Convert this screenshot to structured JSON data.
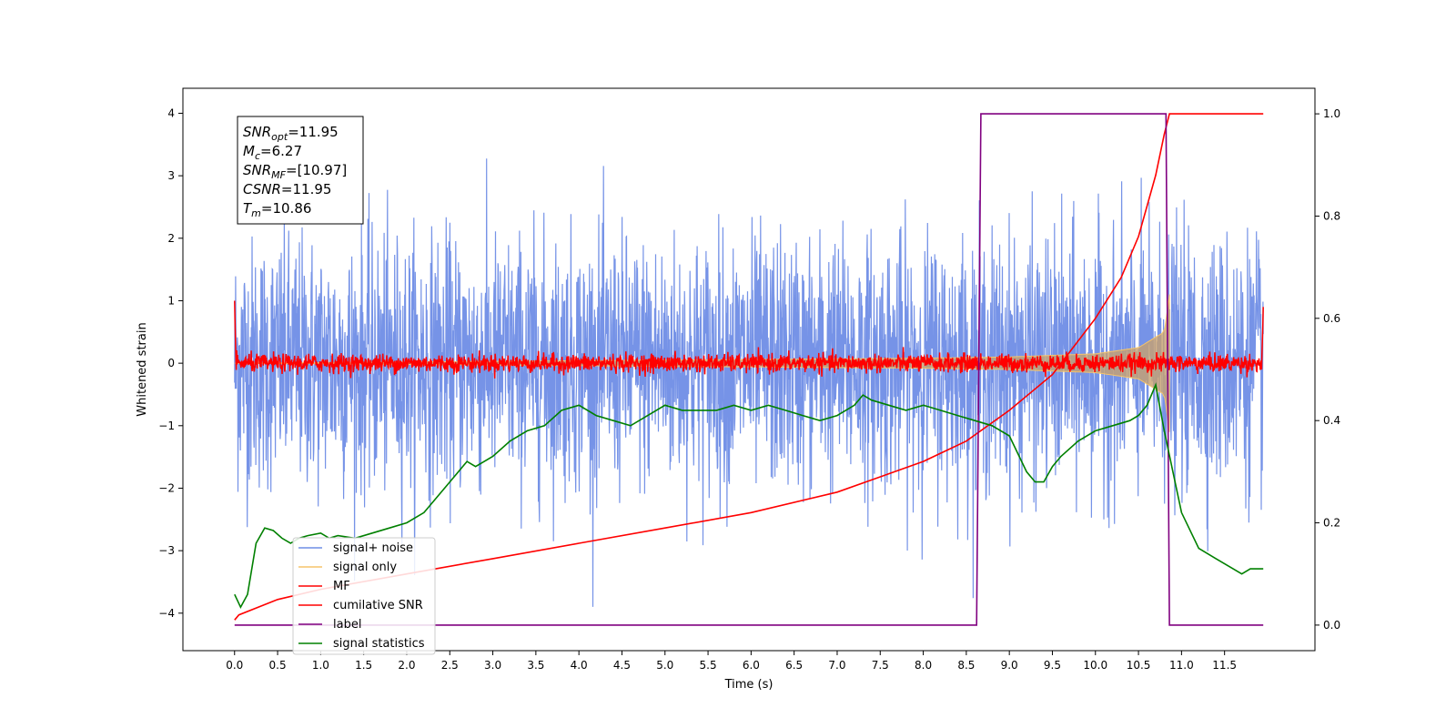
{
  "chart_data": {
    "type": "line",
    "xlabel": "Time (s)",
    "ylabel": "Whitened strain",
    "xlim": [
      -0.6,
      12.55
    ],
    "ylim": [
      -4.6,
      4.4
    ],
    "y2lim": [
      -0.05,
      1.05
    ],
    "x_ticks": [
      "0.0",
      "0.5",
      "1.0",
      "1.5",
      "2.0",
      "2.5",
      "3.0",
      "3.5",
      "4.0",
      "4.5",
      "5.0",
      "5.5",
      "6.0",
      "6.5",
      "7.0",
      "7.5",
      "8.0",
      "8.5",
      "9.0",
      "9.5",
      "10.0",
      "10.5",
      "11.0",
      "11.5"
    ],
    "y_ticks": [
      "4",
      "3",
      "2",
      "1",
      "0",
      "−1",
      "−2",
      "−3",
      "−4"
    ],
    "y2_ticks": [
      "1.0",
      "0.8",
      "0.6",
      "0.4",
      "0.2",
      "0.0"
    ],
    "grid": false,
    "legend_position": "lower-left",
    "annotation": [
      {
        "sym": "SNR",
        "sub": "opt",
        "value": "=11.95"
      },
      {
        "sym": "M",
        "sub": "c",
        "value": "=6.27"
      },
      {
        "sym": "SNR",
        "sub": "MF",
        "value": "=[10.97]"
      },
      {
        "sym": "CSNR",
        "sub": "",
        "value": "=11.95"
      },
      {
        "sym": "T",
        "sub": "m",
        "value": "=10.86"
      }
    ],
    "series": [
      {
        "name": "signal+ noise",
        "axis": "left",
        "color": "#6f8de6",
        "description_range": [
          -3.9,
          4.0
        ]
      },
      {
        "name": "signal only",
        "axis": "left",
        "color": "#f5c46b",
        "envelope": {
          "x": [
            0,
            1,
            2,
            3,
            4,
            5,
            6,
            7,
            8,
            9,
            10,
            10.5,
            10.8,
            10.86
          ],
          "amp": [
            0.0,
            0.01,
            0.02,
            0.03,
            0.04,
            0.05,
            0.06,
            0.07,
            0.08,
            0.1,
            0.15,
            0.25,
            0.5,
            1.1
          ]
        }
      },
      {
        "name": "MF",
        "axis": "left",
        "color": "#ff0000",
        "baseline": 0.0,
        "noise_amplitude": 0.12
      },
      {
        "name": "cumilative SNR",
        "axis": "right",
        "color": "#ff0000",
        "x": [
          0.0,
          0.05,
          0.5,
          1,
          2,
          3,
          4,
          5,
          6,
          7,
          7.5,
          8,
          8.5,
          9,
          9.5,
          10,
          10.3,
          10.5,
          10.7,
          10.8,
          10.86,
          11.95
        ],
        "y": [
          0.01,
          0.02,
          0.05,
          0.07,
          0.1,
          0.13,
          0.16,
          0.19,
          0.22,
          0.26,
          0.29,
          0.32,
          0.36,
          0.42,
          0.49,
          0.6,
          0.68,
          0.76,
          0.88,
          0.96,
          1.0,
          1.0
        ]
      },
      {
        "name": "label",
        "axis": "right",
        "color": "#800080",
        "x": [
          0.0,
          8.62,
          8.67,
          10.82,
          10.86,
          11.95
        ],
        "y": [
          0.0,
          0.0,
          1.0,
          1.0,
          0.0,
          0.0
        ]
      },
      {
        "name": "signal statistics",
        "axis": "right",
        "color": "#008000",
        "x": [
          0.0,
          0.07,
          0.15,
          0.25,
          0.35,
          0.45,
          0.55,
          0.65,
          0.75,
          0.85,
          1.0,
          1.1,
          1.2,
          1.4,
          1.6,
          1.8,
          2.0,
          2.2,
          2.3,
          2.5,
          2.7,
          2.8,
          3.0,
          3.2,
          3.4,
          3.6,
          3.8,
          4.0,
          4.2,
          4.4,
          4.6,
          4.8,
          5.0,
          5.2,
          5.4,
          5.6,
          5.8,
          6.0,
          6.2,
          6.4,
          6.6,
          6.8,
          7.0,
          7.2,
          7.3,
          7.4,
          7.6,
          7.8,
          8.0,
          8.2,
          8.4,
          8.6,
          8.8,
          9.0,
          9.2,
          9.3,
          9.4,
          9.5,
          9.6,
          9.8,
          10.0,
          10.2,
          10.4,
          10.5,
          10.6,
          10.7,
          10.8,
          10.9,
          11.0,
          11.2,
          11.4,
          11.6,
          11.7,
          11.8,
          11.95
        ],
        "y": [
          0.06,
          0.035,
          0.06,
          0.16,
          0.19,
          0.185,
          0.17,
          0.16,
          0.17,
          0.175,
          0.18,
          0.17,
          0.175,
          0.17,
          0.18,
          0.19,
          0.2,
          0.22,
          0.24,
          0.28,
          0.32,
          0.31,
          0.33,
          0.36,
          0.38,
          0.39,
          0.42,
          0.43,
          0.41,
          0.4,
          0.39,
          0.41,
          0.43,
          0.42,
          0.42,
          0.42,
          0.43,
          0.42,
          0.43,
          0.42,
          0.41,
          0.4,
          0.41,
          0.43,
          0.45,
          0.44,
          0.43,
          0.42,
          0.43,
          0.42,
          0.41,
          0.4,
          0.39,
          0.37,
          0.3,
          0.28,
          0.28,
          0.31,
          0.33,
          0.36,
          0.38,
          0.39,
          0.4,
          0.41,
          0.43,
          0.47,
          0.38,
          0.3,
          0.22,
          0.15,
          0.13,
          0.11,
          0.1,
          0.11,
          0.11
        ]
      }
    ]
  }
}
